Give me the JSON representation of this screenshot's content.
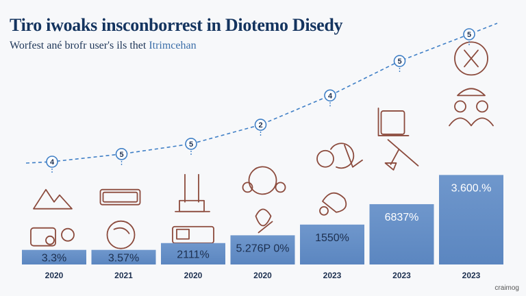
{
  "title": "Tiro iwoaks insconborrest in Diotemo Disedy",
  "subtitle": {
    "text": "Worfest ané brofr user's ils thet",
    "accent": "Itrimcehan"
  },
  "watermark": "craimog",
  "colors": {
    "bar": "#5b86c0",
    "bar_light": "#6f97cc",
    "trend": "#3f7fc6",
    "icon": "#8b4a3c",
    "title": "#14345f"
  },
  "chart_data": {
    "type": "bar",
    "categories": [
      "2020",
      "2021",
      "2020",
      "2020",
      "2023",
      "2023",
      "2023"
    ],
    "value_labels": [
      "3.3%",
      "3.57%",
      "2111%",
      "5.276P 0%",
      "1550%",
      "6837%",
      "3.600.%"
    ],
    "bar_levels": [
      0.15,
      0.15,
      0.22,
      0.3,
      0.41,
      0.62,
      0.92
    ],
    "trend_markers": [
      "4",
      "5",
      "5",
      "2",
      "4",
      "5",
      "5"
    ],
    "trend_levels": [
      0.0,
      0.06,
      0.14,
      0.29,
      0.52,
      0.79,
      1.0
    ],
    "icons": [
      "mountain-icon",
      "chip-icon",
      "plant-icon",
      "network-icon",
      "gear-icon",
      "chart-board-icon",
      "people-icon"
    ],
    "xlabel": "",
    "ylabel": "",
    "grid": false,
    "legend": "none"
  }
}
